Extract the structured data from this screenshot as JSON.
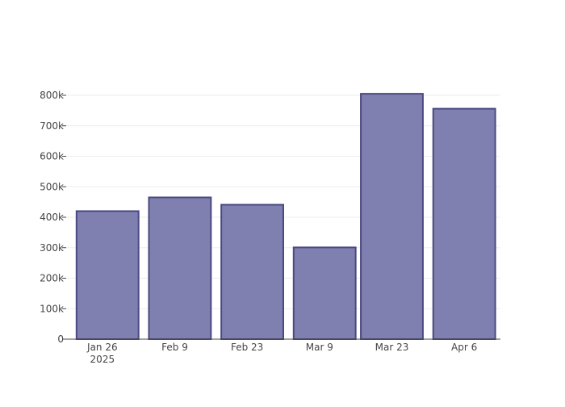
{
  "chart_data": {
    "type": "bar",
    "title": "",
    "xlabel": "",
    "ylabel": "",
    "x": [
      "2025-01-26",
      "2025-02-09",
      "2025-02-23",
      "2025-03-09",
      "2025-03-23",
      "2025-04-06"
    ],
    "values": [
      420000,
      465000,
      441000,
      301000,
      805000,
      756000
    ],
    "x_tick_labels": [
      {
        "date": "2025-01-26",
        "label": "Jan 26",
        "sublabel": "2025"
      },
      {
        "date": "2025-02-09",
        "label": "Feb 9",
        "sublabel": ""
      },
      {
        "date": "2025-02-23",
        "label": "Feb 23",
        "sublabel": ""
      },
      {
        "date": "2025-03-09",
        "label": "Mar 9",
        "sublabel": ""
      },
      {
        "date": "2025-03-23",
        "label": "Mar 23",
        "sublabel": ""
      },
      {
        "date": "2025-04-06",
        "label": "Apr 6",
        "sublabel": ""
      }
    ],
    "bar_dates": [
      {
        "start": "2025-01-21",
        "end": "2025-02-02"
      },
      {
        "start": "2025-02-04",
        "end": "2025-02-16"
      },
      {
        "start": "2025-02-18",
        "end": "2025-03-02"
      },
      {
        "start": "2025-03-04",
        "end": "2025-03-16"
      },
      {
        "start": "2025-03-17",
        "end": "2025-03-29"
      },
      {
        "start": "2025-03-31",
        "end": "2025-04-12"
      }
    ],
    "y_ticks": [
      {
        "value": 0,
        "label": "0"
      },
      {
        "value": 100000,
        "label": "100k"
      },
      {
        "value": 200000,
        "label": "200k"
      },
      {
        "value": 300000,
        "label": "300k"
      },
      {
        "value": 400000,
        "label": "400k"
      },
      {
        "value": 500000,
        "label": "500k"
      },
      {
        "value": 600000,
        "label": "600k"
      },
      {
        "value": 700000,
        "label": "700k"
      },
      {
        "value": 800000,
        "label": "800k"
      }
    ],
    "xlim": [
      "2025-01-19",
      "2025-04-13"
    ],
    "ylim": [
      0,
      800000
    ],
    "grid": true,
    "legend": "none",
    "colors": {
      "bar_fill": "#7f7fb0",
      "bar_stroke": "#4a4a82",
      "grid": "#eeeeee",
      "axis": "#444444"
    }
  }
}
